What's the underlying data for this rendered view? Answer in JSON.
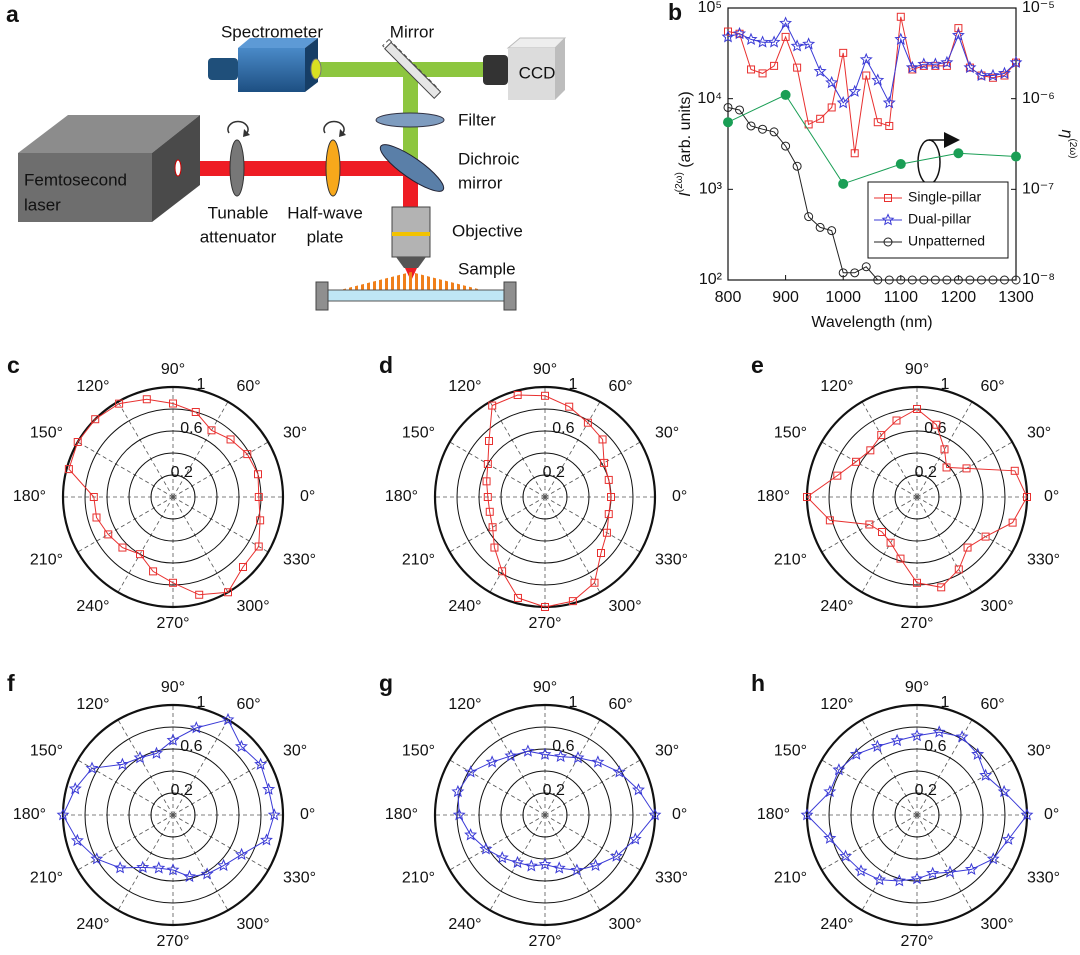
{
  "diagram": {
    "panel": "a",
    "spectrometer": "Spectrometer",
    "mirror": "Mirror",
    "ccd": "CCD",
    "filter": "Filter",
    "dichroic_mirror": [
      "Dichroic",
      "mirror"
    ],
    "femtosecond_laser": [
      "Femtosecond",
      "laser"
    ],
    "tunable_attenuator": [
      "Tunable",
      "attenuator"
    ],
    "half_wave_plate": [
      "Half-wave",
      "plate"
    ],
    "objective": "Objective",
    "sample": "Sample"
  },
  "chart_data": [
    {
      "type": "line",
      "panel": "b",
      "xlabel": "Wavelength (nm)",
      "ylabel": {
        "symbol": "I",
        "superscript": "(2ω)",
        "unit": " (arb. units)"
      },
      "y2label": {
        "symbol": "η",
        "superscript": "(2ω)"
      },
      "x": [
        800,
        820,
        840,
        860,
        880,
        900,
        920,
        940,
        960,
        980,
        1000,
        1020,
        1040,
        1060,
        1080,
        1100,
        1120,
        1140,
        1160,
        1180,
        1200,
        1220,
        1240,
        1260,
        1280,
        1300
      ],
      "xlim": [
        800,
        1300
      ],
      "xticks": [
        800,
        900,
        1000,
        1100,
        1200,
        1300
      ],
      "ylog": true,
      "ylim": [
        100,
        100000
      ],
      "yticks": [
        {
          "value": 100,
          "label": "10²"
        },
        {
          "value": 1000,
          "label": "10³"
        },
        {
          "value": 10000,
          "label": "10⁴"
        },
        {
          "value": 100000,
          "label": "10⁵"
        }
      ],
      "y2log": true,
      "y2lim": [
        1e-08,
        1e-05
      ],
      "y2ticks": [
        {
          "value": 1e-08,
          "label": "10⁻⁸"
        },
        {
          "value": 1e-07,
          "label": "10⁻⁷"
        },
        {
          "value": 1e-06,
          "label": "10⁻⁶"
        },
        {
          "value": 1e-05,
          "label": "10⁻⁵"
        }
      ],
      "legend": "lower right",
      "series": [
        {
          "name": "Single-pillar",
          "color": "#e8302f",
          "marker": "square",
          "values": [
            55000,
            52000,
            21000,
            19000,
            23000,
            48000,
            22000,
            5200,
            6000,
            8000,
            32000,
            2500,
            18000,
            5500,
            5000,
            80000,
            21000,
            23000,
            23000,
            23000,
            60000,
            22000,
            18000,
            17000,
            18000,
            25000
          ]
        },
        {
          "name": "Dual-pillar",
          "color": "#3a3ad6",
          "marker": "star",
          "values": [
            48000,
            52000,
            45000,
            42000,
            42000,
            68000,
            38000,
            40000,
            20000,
            15000,
            9000,
            12000,
            27000,
            16000,
            9000,
            45000,
            22000,
            24000,
            24000,
            25000,
            50000,
            22000,
            18000,
            18000,
            19000,
            25000
          ]
        },
        {
          "name": "Unpatterned",
          "color": "#222222",
          "marker": "circle",
          "values": [
            8000,
            7500,
            5000,
            4600,
            4300,
            3000,
            1800,
            500,
            380,
            350,
            120,
            120,
            140,
            100,
            100,
            100,
            100,
            100,
            100,
            100,
            100,
            100,
            100,
            100,
            100,
            100
          ]
        },
        {
          "color": "#1a9e55",
          "marker": "filled-circle",
          "axis": "y2",
          "x": [
            800,
            900,
            1000,
            1100,
            1200,
            1300
          ],
          "values": [
            5.5e-07,
            1.1e-06,
            1.15e-07,
            1.9e-07,
            2.5e-07,
            2.3e-07
          ]
        }
      ]
    },
    {
      "type": "polar",
      "panel": "c",
      "color": "#e8302f",
      "marker": "square",
      "theta": [
        0,
        15,
        30,
        45,
        60,
        75,
        90,
        105,
        120,
        135,
        150,
        165,
        180,
        195,
        210,
        225,
        240,
        255,
        270,
        285,
        300,
        315,
        330,
        345
      ],
      "values": [
        0.78,
        0.8,
        0.78,
        0.74,
        0.7,
        0.8,
        0.85,
        0.92,
        0.98,
        1.0,
        1.0,
        0.98,
        0.72,
        0.72,
        0.68,
        0.65,
        0.6,
        0.7,
        0.78,
        0.92,
        1.0,
        0.9,
        0.9,
        0.82
      ],
      "rlim": [
        0,
        1
      ],
      "rticks": [
        0.2,
        0.6,
        1
      ],
      "rgrid": [
        0.2,
        0.4,
        0.6,
        0.8,
        1
      ],
      "thetaticks": [
        {
          "value": 0,
          "label": "0°"
        },
        {
          "value": 30,
          "label": "30°"
        },
        {
          "value": 60,
          "label": "60°"
        },
        {
          "value": 90,
          "label": "90°"
        },
        {
          "value": 120,
          "label": "120°"
        },
        {
          "value": 150,
          "label": "150°"
        },
        {
          "value": 180,
          "label": "180°"
        },
        {
          "value": 210,
          "label": "210°"
        },
        {
          "value": 240,
          "label": "240°"
        },
        {
          "value": 270,
          "label": "270°"
        },
        {
          "value": 300,
          "label": "300°"
        },
        {
          "value": 330,
          "label": "330°"
        }
      ]
    },
    {
      "type": "polar",
      "panel": "d",
      "color": "#e8302f",
      "marker": "square",
      "theta": [
        0,
        15,
        30,
        45,
        60,
        75,
        90,
        105,
        120,
        135,
        150,
        165,
        180,
        195,
        210,
        225,
        240,
        255,
        270,
        285,
        300,
        315,
        330,
        345
      ],
      "values": [
        0.6,
        0.6,
        0.62,
        0.74,
        0.78,
        0.85,
        0.92,
        0.96,
        0.96,
        0.72,
        0.6,
        0.55,
        0.52,
        0.52,
        0.55,
        0.65,
        0.78,
        0.95,
        1.0,
        0.98,
        0.9,
        0.72,
        0.65,
        0.6
      ],
      "rlim": [
        0,
        1
      ],
      "rticks": [
        0.2,
        0.6,
        1
      ],
      "rgrid": [
        0.2,
        0.4,
        0.6,
        0.8,
        1
      ],
      "thetaticks": [
        {
          "value": 0,
          "label": "0°"
        },
        {
          "value": 30,
          "label": "30°"
        },
        {
          "value": 60,
          "label": "60°"
        },
        {
          "value": 90,
          "label": "90°"
        },
        {
          "value": 120,
          "label": "120°"
        },
        {
          "value": 150,
          "label": "150°"
        },
        {
          "value": 180,
          "label": "180°"
        },
        {
          "value": 210,
          "label": "210°"
        },
        {
          "value": 240,
          "label": "240°"
        },
        {
          "value": 270,
          "label": "270°"
        },
        {
          "value": 300,
          "label": "300°"
        },
        {
          "value": 330,
          "label": "330°"
        }
      ]
    },
    {
      "type": "polar",
      "panel": "e",
      "color": "#e8302f",
      "marker": "square",
      "theta": [
        0,
        15,
        30,
        45,
        60,
        75,
        90,
        105,
        120,
        135,
        150,
        165,
        180,
        195,
        210,
        225,
        240,
        255,
        270,
        285,
        300,
        315,
        330,
        345
      ],
      "values": [
        1.0,
        0.92,
        0.52,
        0.38,
        0.5,
        0.68,
        0.8,
        0.72,
        0.65,
        0.6,
        0.64,
        0.75,
        1.0,
        0.82,
        0.5,
        0.45,
        0.48,
        0.58,
        0.78,
        0.85,
        0.76,
        0.65,
        0.72,
        0.9
      ],
      "rlim": [
        0,
        1
      ],
      "rticks": [
        0.2,
        0.6,
        1
      ],
      "rgrid": [
        0.2,
        0.4,
        0.6,
        0.8,
        1
      ],
      "thetaticks": [
        {
          "value": 0,
          "label": "0°"
        },
        {
          "value": 30,
          "label": "30°"
        },
        {
          "value": 60,
          "label": "60°"
        },
        {
          "value": 90,
          "label": "90°"
        },
        {
          "value": 120,
          "label": "120°"
        },
        {
          "value": 150,
          "label": "150°"
        },
        {
          "value": 180,
          "label": "180°"
        },
        {
          "value": 210,
          "label": "210°"
        },
        {
          "value": 240,
          "label": "240°"
        },
        {
          "value": 270,
          "label": "270°"
        },
        {
          "value": 300,
          "label": "300°"
        },
        {
          "value": 330,
          "label": "330°"
        }
      ]
    },
    {
      "type": "polar",
      "panel": "f",
      "color": "#3a3ad6",
      "marker": "star",
      "theta": [
        0,
        15,
        30,
        45,
        60,
        75,
        90,
        105,
        120,
        135,
        150,
        165,
        180,
        195,
        210,
        225,
        240,
        255,
        270,
        285,
        300,
        315,
        330,
        345
      ],
      "values": [
        0.92,
        0.9,
        0.92,
        0.88,
        1.0,
        0.82,
        0.68,
        0.58,
        0.6,
        0.65,
        0.85,
        0.92,
        1.0,
        0.9,
        0.8,
        0.68,
        0.55,
        0.5,
        0.5,
        0.58,
        0.62,
        0.65,
        0.72,
        0.88
      ],
      "rlim": [
        0,
        1
      ],
      "rticks": [
        0.2,
        0.6,
        1
      ],
      "rgrid": [
        0.2,
        0.4,
        0.6,
        0.8,
        1
      ],
      "thetaticks": [
        {
          "value": 0,
          "label": "0°"
        },
        {
          "value": 30,
          "label": "30°"
        },
        {
          "value": 60,
          "label": "60°"
        },
        {
          "value": 90,
          "label": "90°"
        },
        {
          "value": 120,
          "label": "120°"
        },
        {
          "value": 150,
          "label": "150°"
        },
        {
          "value": 180,
          "label": "180°"
        },
        {
          "value": 210,
          "label": "210°"
        },
        {
          "value": 240,
          "label": "240°"
        },
        {
          "value": 270,
          "label": "270°"
        },
        {
          "value": 300,
          "label": "300°"
        },
        {
          "value": 330,
          "label": "330°"
        }
      ]
    },
    {
      "type": "polar",
      "panel": "g",
      "color": "#3a3ad6",
      "marker": "star",
      "theta": [
        0,
        15,
        30,
        45,
        60,
        75,
        90,
        105,
        120,
        135,
        150,
        165,
        180,
        195,
        210,
        225,
        240,
        255,
        270,
        285,
        300,
        315,
        330,
        345
      ],
      "values": [
        1.0,
        0.88,
        0.78,
        0.68,
        0.6,
        0.55,
        0.55,
        0.6,
        0.62,
        0.68,
        0.78,
        0.82,
        0.78,
        0.7,
        0.62,
        0.55,
        0.5,
        0.48,
        0.45,
        0.5,
        0.58,
        0.65,
        0.75,
        0.85
      ],
      "rlim": [
        0,
        1
      ],
      "rticks": [
        0.2,
        0.6,
        1
      ],
      "rgrid": [
        0.2,
        0.4,
        0.6,
        0.8,
        1
      ],
      "thetaticks": [
        {
          "value": 0,
          "label": "0°"
        },
        {
          "value": 30,
          "label": "30°"
        },
        {
          "value": 60,
          "label": "60°"
        },
        {
          "value": 90,
          "label": "90°"
        },
        {
          "value": 120,
          "label": "120°"
        },
        {
          "value": 150,
          "label": "150°"
        },
        {
          "value": 180,
          "label": "180°"
        },
        {
          "value": 210,
          "label": "210°"
        },
        {
          "value": 240,
          "label": "240°"
        },
        {
          "value": 270,
          "label": "270°"
        },
        {
          "value": 300,
          "label": "300°"
        },
        {
          "value": 330,
          "label": "330°"
        }
      ]
    },
    {
      "type": "polar",
      "panel": "h",
      "color": "#3a3ad6",
      "marker": "star",
      "theta": [
        0,
        15,
        30,
        45,
        60,
        75,
        90,
        105,
        120,
        135,
        150,
        165,
        180,
        195,
        210,
        225,
        240,
        255,
        270,
        285,
        300,
        315,
        330,
        345
      ],
      "values": [
        1.0,
        0.82,
        0.72,
        0.78,
        0.82,
        0.78,
        0.72,
        0.7,
        0.72,
        0.78,
        0.82,
        0.82,
        1.0,
        0.82,
        0.75,
        0.72,
        0.68,
        0.62,
        0.58,
        0.55,
        0.6,
        0.7,
        0.8,
        0.86
      ],
      "rlim": [
        0,
        1
      ],
      "rticks": [
        0.2,
        0.6,
        1
      ],
      "rgrid": [
        0.2,
        0.4,
        0.6,
        0.8,
        1
      ],
      "thetaticks": [
        {
          "value": 0,
          "label": "0°"
        },
        {
          "value": 30,
          "label": "30°"
        },
        {
          "value": 60,
          "label": "60°"
        },
        {
          "value": 90,
          "label": "90°"
        },
        {
          "value": 120,
          "label": "120°"
        },
        {
          "value": 150,
          "label": "150°"
        },
        {
          "value": 180,
          "label": "180°"
        },
        {
          "value": 210,
          "label": "210°"
        },
        {
          "value": 240,
          "label": "240°"
        },
        {
          "value": 270,
          "label": "270°"
        },
        {
          "value": 300,
          "label": "300°"
        },
        {
          "value": 330,
          "label": "330°"
        }
      ]
    }
  ]
}
